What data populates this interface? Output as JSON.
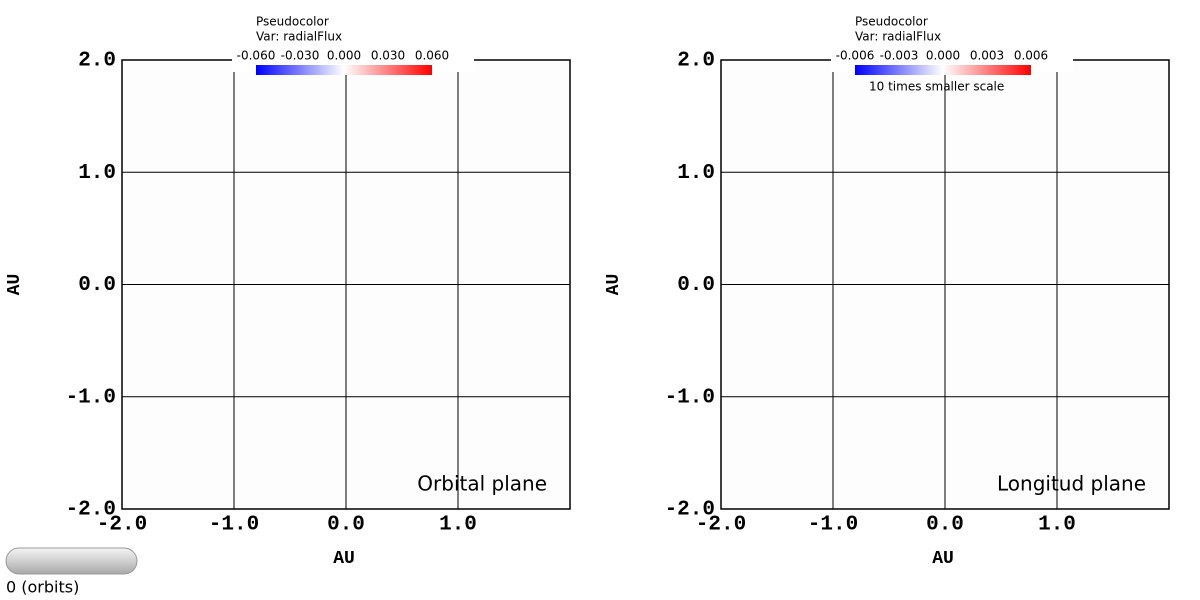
{
  "chart_data": [
    {
      "type": "pseudocolor",
      "legend_title": "Pseudocolor",
      "variable": "Var: radialFlux",
      "colorbar_lim": [
        -0.06,
        0.06
      ],
      "colorbar_ticks": [
        {
          "value": -0.06,
          "label": "-0.060"
        },
        {
          "value": -0.03,
          "label": "-0.030"
        },
        {
          "value": 0,
          "label": "0.000"
        },
        {
          "value": 0.03,
          "label": "0.030"
        },
        {
          "value": 0.06,
          "label": "0.060"
        }
      ],
      "colors": [
        "#0000ff",
        "#ffffff",
        "#ff0000"
      ],
      "annotation": "Orbital plane",
      "xlabel": "AU",
      "ylabel": "AU",
      "xlim": [
        -2,
        2
      ],
      "ylim": [
        -2,
        2
      ],
      "xticks": [
        {
          "value": -2,
          "label": "-2.0"
        },
        {
          "value": -1,
          "label": "-1.0"
        },
        {
          "value": 0,
          "label": "0.0"
        },
        {
          "value": 1,
          "label": "1.0"
        }
      ],
      "yticks": [
        {
          "value": -2,
          "label": "-2.0"
        },
        {
          "value": -1,
          "label": "-1.0"
        },
        {
          "value": 0,
          "label": "0.0"
        },
        {
          "value": 1,
          "label": "1.0"
        },
        {
          "value": 2,
          "label": "2.0"
        }
      ],
      "grid": true
    },
    {
      "type": "pseudocolor",
      "legend_title": "Pseudocolor",
      "variable": "Var: radialFlux",
      "note": "10 times smaller scale",
      "colorbar_lim": [
        -0.006,
        0.006
      ],
      "colorbar_ticks": [
        {
          "value": -0.006,
          "label": "-0.006"
        },
        {
          "value": -0.003,
          "label": "-0.003"
        },
        {
          "value": 0,
          "label": "0.000"
        },
        {
          "value": 0.003,
          "label": "0.003"
        },
        {
          "value": 0.006,
          "label": "0.006"
        }
      ],
      "colors": [
        "#0000ff",
        "#ffffff",
        "#ff0000"
      ],
      "annotation": "Longitud plane",
      "xlabel": "AU",
      "ylabel": "AU",
      "xlim": [
        -2,
        2
      ],
      "ylim": [
        -2,
        2
      ],
      "xticks": [
        {
          "value": -2,
          "label": "-2.0"
        },
        {
          "value": -1,
          "label": "-1.0"
        },
        {
          "value": 0,
          "label": "0.0"
        },
        {
          "value": 1,
          "label": "1.0"
        }
      ],
      "yticks": [
        {
          "value": -2,
          "label": "-2.0"
        },
        {
          "value": -1,
          "label": "-1.0"
        },
        {
          "value": 0,
          "label": "0.0"
        },
        {
          "value": 1,
          "label": "1.0"
        },
        {
          "value": 2,
          "label": "2.0"
        }
      ],
      "grid": true
    }
  ],
  "time_slider": {
    "label": "0 (orbits)"
  }
}
